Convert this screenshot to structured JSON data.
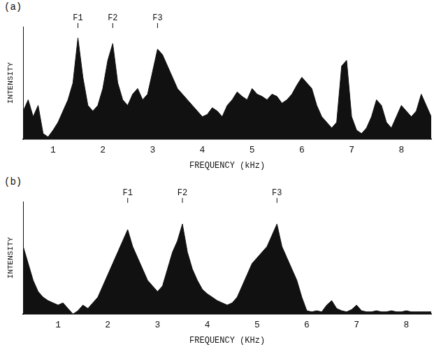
{
  "chart_data": [
    {
      "type": "line",
      "title": "(a)",
      "x_label": "FREQUENCY (kHz)",
      "y_label": "INTENSITY",
      "color": "#111111",
      "grid": false,
      "tick_labels": "x",
      "xlim": [
        0.4,
        8.6
      ],
      "xticks": [
        1,
        2,
        3,
        4,
        5,
        6,
        7,
        8
      ],
      "ylim": [
        0,
        100
      ],
      "annotations": [
        {
          "text": "F1",
          "x": 1.5
        },
        {
          "text": "F2",
          "x": 2.2
        },
        {
          "text": "F3",
          "x": 3.1
        }
      ],
      "x": [
        0.4,
        0.5,
        0.6,
        0.7,
        0.8,
        0.9,
        1.0,
        1.1,
        1.2,
        1.3,
        1.4,
        1.5,
        1.6,
        1.7,
        1.8,
        1.9,
        2.0,
        2.1,
        2.2,
        2.3,
        2.4,
        2.5,
        2.6,
        2.7,
        2.8,
        2.9,
        3.0,
        3.1,
        3.2,
        3.3,
        3.4,
        3.5,
        3.6,
        3.7,
        3.8,
        3.9,
        4.0,
        4.1,
        4.2,
        4.3,
        4.4,
        4.5,
        4.6,
        4.7,
        4.8,
        4.9,
        5.0,
        5.1,
        5.2,
        5.3,
        5.4,
        5.5,
        5.6,
        5.7,
        5.8,
        5.9,
        6.0,
        6.1,
        6.2,
        6.3,
        6.4,
        6.5,
        6.6,
        6.7,
        6.8,
        6.9,
        7.0,
        7.1,
        7.2,
        7.3,
        7.4,
        7.5,
        7.6,
        7.7,
        7.8,
        7.9,
        8.0,
        8.1,
        8.2,
        8.3,
        8.4,
        8.5,
        8.6
      ],
      "values": [
        25,
        35,
        20,
        30,
        5,
        2,
        8,
        15,
        25,
        35,
        50,
        90,
        55,
        30,
        25,
        30,
        45,
        70,
        85,
        50,
        35,
        30,
        40,
        45,
        35,
        40,
        60,
        80,
        75,
        65,
        55,
        45,
        40,
        35,
        30,
        25,
        20,
        22,
        28,
        25,
        20,
        30,
        35,
        42,
        38,
        35,
        45,
        40,
        38,
        35,
        40,
        38,
        32,
        35,
        40,
        48,
        55,
        50,
        45,
        30,
        20,
        15,
        10,
        15,
        65,
        70,
        20,
        8,
        5,
        10,
        20,
        35,
        30,
        15,
        10,
        20,
        30,
        25,
        20,
        25,
        40,
        30,
        20
      ]
    },
    {
      "type": "line",
      "title": "(b)",
      "x_label": "FREQUENCY (KHz)",
      "y_label": "INTENSITY",
      "color": "#111111",
      "grid": false,
      "tick_labels": "x",
      "xlim": [
        0.3,
        8.5
      ],
      "xticks": [
        1,
        2,
        3,
        4,
        5,
        6,
        7,
        8
      ],
      "ylim": [
        0,
        100
      ],
      "annotations": [
        {
          "text": "F1",
          "x": 2.4
        },
        {
          "text": "F2",
          "x": 3.5
        },
        {
          "text": "F3",
          "x": 5.4
        }
      ],
      "x": [
        0.3,
        0.4,
        0.5,
        0.6,
        0.7,
        0.8,
        0.9,
        1.0,
        1.1,
        1.2,
        1.3,
        1.4,
        1.5,
        1.6,
        1.7,
        1.8,
        1.9,
        2.0,
        2.1,
        2.2,
        2.3,
        2.4,
        2.5,
        2.6,
        2.7,
        2.8,
        2.9,
        3.0,
        3.1,
        3.2,
        3.3,
        3.4,
        3.5,
        3.6,
        3.7,
        3.8,
        3.9,
        4.0,
        4.1,
        4.2,
        4.3,
        4.4,
        4.5,
        4.6,
        4.7,
        4.8,
        4.9,
        5.0,
        5.1,
        5.2,
        5.3,
        5.4,
        5.5,
        5.6,
        5.7,
        5.8,
        5.9,
        6.0,
        6.1,
        6.2,
        6.3,
        6.4,
        6.5,
        6.6,
        6.7,
        6.8,
        6.9,
        7.0,
        7.1,
        7.2,
        7.3,
        7.4,
        7.5,
        7.6,
        7.7,
        7.8,
        7.9,
        8.0,
        8.1,
        8.2,
        8.3,
        8.4,
        8.5
      ],
      "values": [
        60,
        45,
        30,
        20,
        15,
        12,
        10,
        8,
        10,
        5,
        0,
        3,
        8,
        5,
        10,
        15,
        25,
        35,
        45,
        55,
        65,
        75,
        60,
        50,
        40,
        30,
        25,
        20,
        25,
        40,
        55,
        65,
        80,
        55,
        40,
        30,
        22,
        18,
        15,
        12,
        10,
        8,
        10,
        15,
        25,
        35,
        45,
        50,
        55,
        60,
        70,
        80,
        60,
        50,
        40,
        30,
        15,
        3,
        2,
        3,
        2,
        8,
        12,
        5,
        3,
        2,
        4,
        8,
        3,
        2,
        2,
        3,
        2,
        2,
        3,
        2,
        2,
        3,
        2,
        2,
        2,
        2,
        2
      ]
    }
  ]
}
